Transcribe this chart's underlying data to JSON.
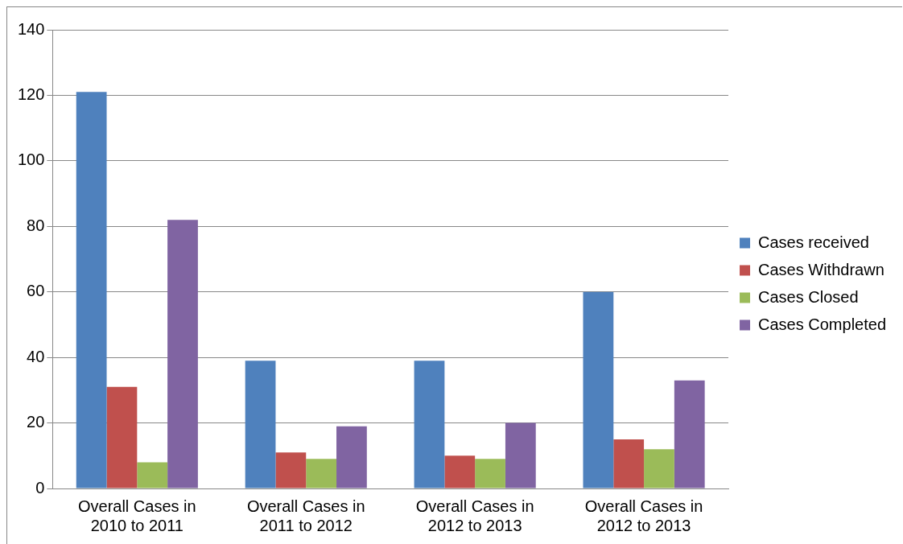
{
  "chart_data": {
    "type": "bar",
    "categories": [
      "Overall Cases in 2010 to 2011",
      "Overall Cases in 2011 to 2012",
      "Overall Cases in 2012 to 2013",
      "Overall Cases in 2012 to 2013"
    ],
    "series": [
      {
        "name": "Cases received",
        "color": "#4f81bd",
        "values": [
          121,
          39,
          39,
          60
        ]
      },
      {
        "name": "Cases Withdrawn",
        "color": "#c0504d",
        "values": [
          31,
          11,
          10,
          15
        ]
      },
      {
        "name": "Cases Closed",
        "color": "#9bbb59",
        "values": [
          8,
          9,
          9,
          12
        ]
      },
      {
        "name": "Cases Completed",
        "color": "#8064a2",
        "values": [
          82,
          19,
          20,
          33
        ]
      }
    ],
    "ylim": [
      0,
      140
    ],
    "yticks": [
      0,
      20,
      40,
      60,
      80,
      100,
      120,
      140
    ],
    "grid": "y",
    "legend": "right"
  }
}
